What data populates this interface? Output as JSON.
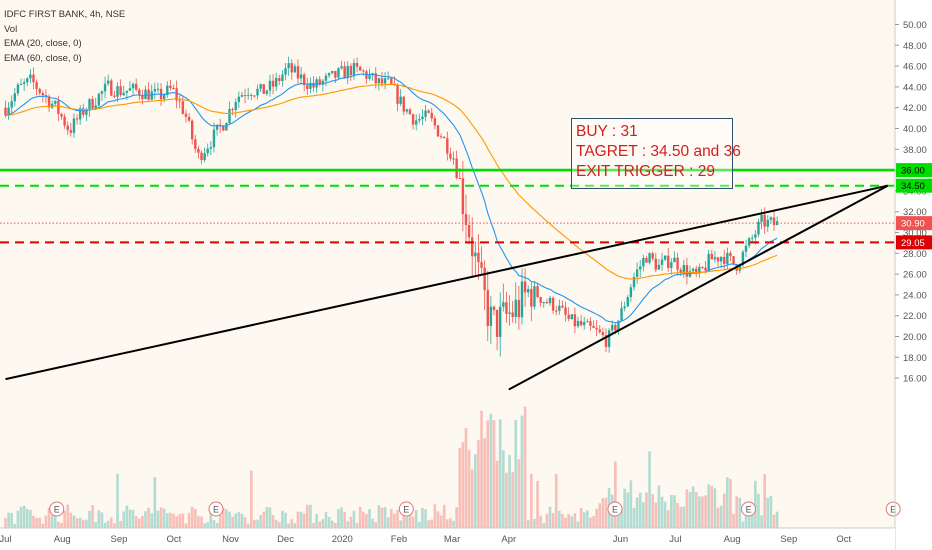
{
  "legend": {
    "symbol_line": "IDFC FIRST BANK, 4h, NSE",
    "volume": "Vol",
    "ema20": "EMA (20, close, 0)",
    "ema60": "EMA (60, close, 0)"
  },
  "annotation": {
    "line1": "BUY : 31",
    "line2": "TAGRET : 34.50 and 36",
    "line3": "EXIT TRIGGER : 29"
  },
  "colors": {
    "up": "#26a69a",
    "down": "#ef5350",
    "ema20": "#2196f3",
    "ema60": "#ff9800",
    "target_line": "#00dd00",
    "stop_line": "#dd0000",
    "trendline": "#000000",
    "annotation_text": "#d31e1e"
  },
  "chart_data": {
    "type": "candlestick",
    "title": "IDFC FIRST BANK, 4h, NSE",
    "x_tick_labels": [
      "Jul",
      "Aug",
      "Sep",
      "Oct",
      "Nov",
      "Dec",
      "2020",
      "Feb",
      "Mar",
      "Apr",
      "Jun",
      "Jul",
      "Aug",
      "Sep",
      "Oct"
    ],
    "y_ticks": [
      "16.00",
      "18.00",
      "20.00",
      "22.00",
      "24.00",
      "26.00",
      "28.00",
      "30.00",
      "32.00",
      "34.00",
      "36.00",
      "38.00",
      "40.00",
      "42.00",
      "44.00",
      "46.00",
      "48.00",
      "50.00"
    ],
    "ylim": [
      15.0,
      51.0
    ],
    "horizontal_levels": [
      {
        "value": 36.0,
        "label": "36.00",
        "style": "solid",
        "color": "#00dd00"
      },
      {
        "value": 34.5,
        "label": "34.50",
        "style": "dashed",
        "color": "#00dd00"
      },
      {
        "value": 30.9,
        "label": "30.90",
        "style": "dotted",
        "color": "#ef5350"
      },
      {
        "value": 29.05,
        "label": "29.05",
        "style": "dashed",
        "color": "#dd0000"
      }
    ],
    "trendlines": [
      {
        "name": "upper",
        "from": {
          "date": "2019-07-01",
          "value": 15.9
        },
        "to": {
          "date": "2020-10-25",
          "value": 34.5
        }
      },
      {
        "name": "lower",
        "from": {
          "date": "2020-04-01",
          "value": 14.9
        },
        "to": {
          "date": "2020-10-25",
          "value": 34.5
        }
      }
    ],
    "price_path": [
      [
        "2019-07-01",
        42.0
      ],
      [
        "2019-07-08",
        43.8
      ],
      [
        "2019-07-15",
        44.6
      ],
      [
        "2019-07-22",
        43.2
      ],
      [
        "2019-07-29",
        41.9
      ],
      [
        "2019-08-05",
        39.8
      ],
      [
        "2019-08-12",
        41.6
      ],
      [
        "2019-08-19",
        42.8
      ],
      [
        "2019-08-26",
        44.0
      ],
      [
        "2019-09-02",
        43.6
      ],
      [
        "2019-09-09",
        43.7
      ],
      [
        "2019-09-16",
        43.4
      ],
      [
        "2019-09-23",
        43.1
      ],
      [
        "2019-09-30",
        43.8
      ],
      [
        "2019-10-07",
        41.5
      ],
      [
        "2019-10-14",
        37.2
      ],
      [
        "2019-10-21",
        38.8
      ],
      [
        "2019-10-28",
        40.5
      ],
      [
        "2019-11-04",
        43.0
      ],
      [
        "2019-11-11",
        43.8
      ],
      [
        "2019-11-18",
        43.5
      ],
      [
        "2019-11-25",
        44.2
      ],
      [
        "2019-12-02",
        45.8
      ],
      [
        "2019-12-09",
        44.9
      ],
      [
        "2019-12-16",
        44.0
      ],
      [
        "2019-12-23",
        44.6
      ],
      [
        "2019-12-30",
        45.2
      ],
      [
        "2020-01-06",
        45.7
      ],
      [
        "2020-01-13",
        45.3
      ],
      [
        "2020-01-20",
        44.4
      ],
      [
        "2020-01-27",
        44.2
      ],
      [
        "2020-02-03",
        42.2
      ],
      [
        "2020-02-10",
        40.8
      ],
      [
        "2020-02-17",
        41.1
      ],
      [
        "2020-02-24",
        39.4
      ],
      [
        "2020-03-02",
        37.2
      ],
      [
        "2020-03-09",
        31.5
      ],
      [
        "2020-03-16",
        25.2
      ],
      [
        "2020-03-23",
        21.0
      ],
      [
        "2020-03-30",
        21.8
      ],
      [
        "2020-04-06",
        22.8
      ],
      [
        "2020-04-13",
        24.6
      ],
      [
        "2020-04-20",
        23.5
      ],
      [
        "2020-04-27",
        22.9
      ],
      [
        "2020-05-04",
        21.5
      ],
      [
        "2020-05-11",
        21.0
      ],
      [
        "2020-05-18",
        20.5
      ],
      [
        "2020-05-25",
        19.6
      ],
      [
        "2020-06-01",
        22.0
      ],
      [
        "2020-06-08",
        25.6
      ],
      [
        "2020-06-15",
        27.8
      ],
      [
        "2020-06-22",
        26.7
      ],
      [
        "2020-06-29",
        27.5
      ],
      [
        "2020-07-06",
        26.4
      ],
      [
        "2020-07-13",
        25.7
      ],
      [
        "2020-07-20",
        27.4
      ],
      [
        "2020-07-27",
        27.8
      ],
      [
        "2020-08-03",
        26.8
      ],
      [
        "2020-08-10",
        28.8
      ],
      [
        "2020-08-17",
        31.0
      ],
      [
        "2020-08-24",
        30.8
      ]
    ],
    "series": [
      {
        "name": "Vol",
        "kind": "volume"
      },
      {
        "name": "EMA (20, close, 0)",
        "kind": "line",
        "color": "#2196f3"
      },
      {
        "name": "EMA (60, close, 0)",
        "kind": "line",
        "color": "#ff9800"
      }
    ],
    "event_markers": [
      {
        "date": "2019-07-29",
        "label": "E"
      },
      {
        "date": "2019-10-24",
        "label": "E"
      },
      {
        "date": "2020-02-05",
        "label": "E"
      },
      {
        "date": "2020-05-29",
        "label": "E"
      },
      {
        "date": "2020-08-10",
        "label": "E"
      },
      {
        "date": "2020-10-28",
        "label": "E"
      }
    ],
    "grid": false
  }
}
